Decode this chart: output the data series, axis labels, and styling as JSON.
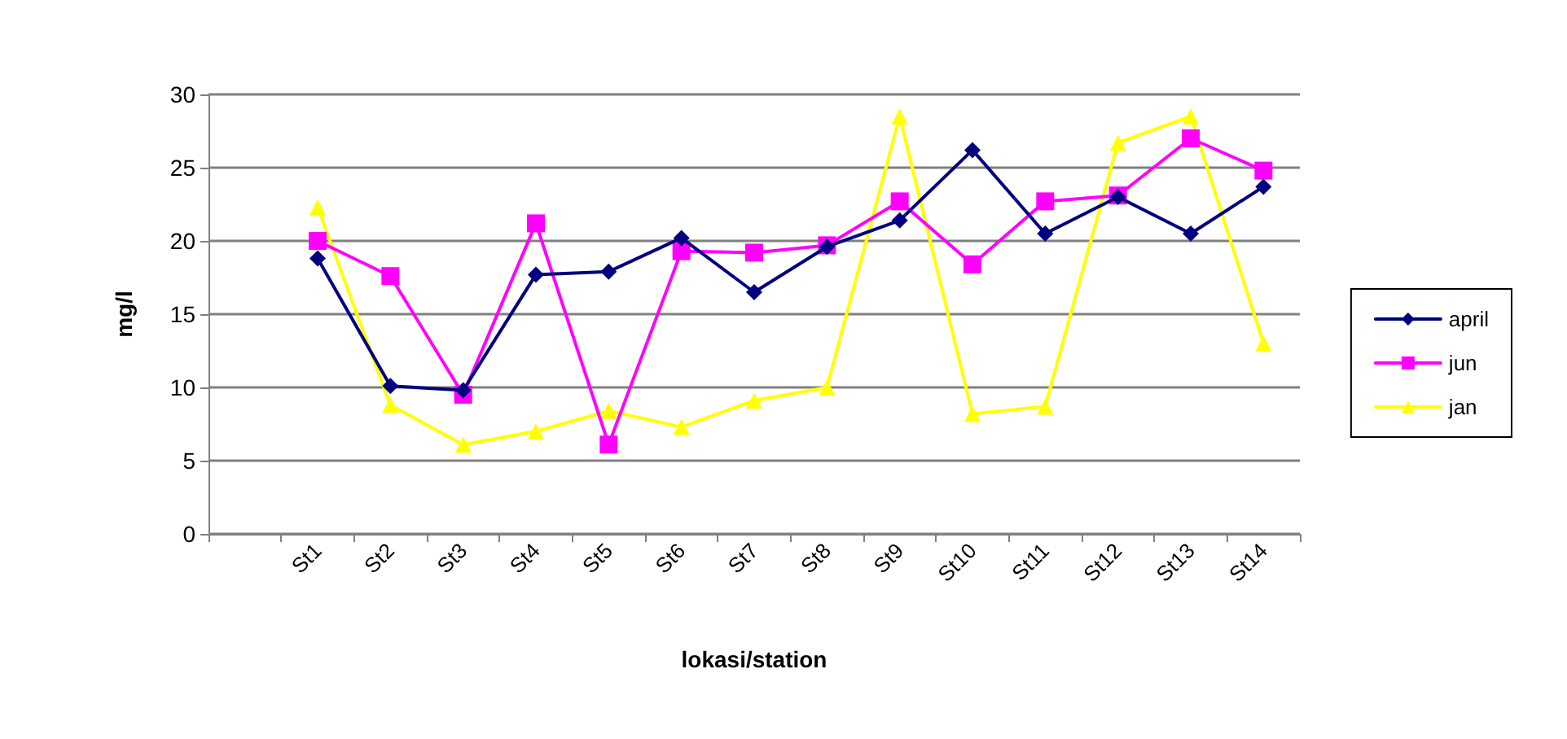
{
  "chart_data": {
    "type": "line",
    "xlabel": "lokasi/station",
    "ylabel": "mg/l",
    "categories": [
      null,
      "St1",
      "St2",
      "St3",
      "St4",
      "St5",
      "St6",
      "St7",
      "St8",
      "St9",
      "St10",
      "St11",
      "St12",
      "St13",
      "St14"
    ],
    "series": [
      {
        "name": "april",
        "color": "#000080",
        "marker": "diamond",
        "values": [
          null,
          18.8,
          10.1,
          9.8,
          17.7,
          17.9,
          20.2,
          16.5,
          19.6,
          21.4,
          26.2,
          20.5,
          23.0,
          20.5,
          23.7
        ]
      },
      {
        "name": "jun",
        "color": "#ff00ff",
        "marker": "square",
        "values": [
          null,
          20.0,
          17.6,
          9.5,
          21.2,
          6.1,
          19.3,
          19.2,
          19.7,
          22.7,
          18.4,
          22.7,
          23.1,
          27.0,
          24.8
        ]
      },
      {
        "name": "jan",
        "color": "#ffff00",
        "marker": "triangle",
        "values": [
          null,
          22.3,
          8.8,
          6.1,
          7.0,
          8.4,
          7.3,
          9.1,
          10.0,
          28.5,
          8.2,
          8.7,
          26.7,
          28.5,
          13.0
        ]
      }
    ],
    "ylim": [
      0,
      30
    ],
    "yticks": [
      0,
      5,
      10,
      15,
      20,
      25,
      30
    ],
    "grid": "y",
    "legend": "right"
  }
}
